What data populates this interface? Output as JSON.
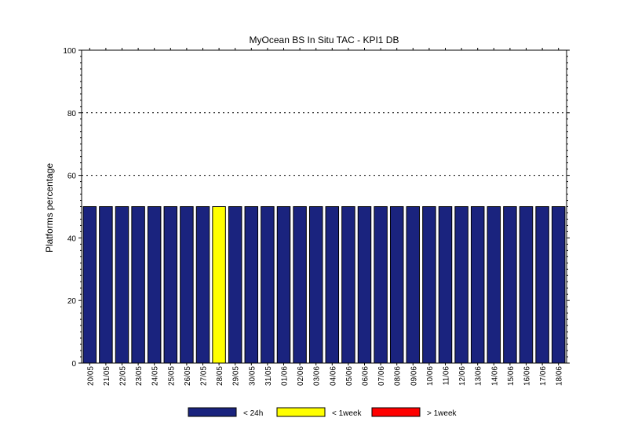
{
  "chart_data": {
    "type": "bar",
    "title": "MyOcean  BS In Situ TAC - KPI1  DB",
    "ylabel": "Platforms percentage",
    "xlabel": "",
    "ylim": [
      0,
      100
    ],
    "yticks": [
      0,
      20,
      40,
      60,
      80,
      100
    ],
    "grid": "horizontal dotted at 60, 80, 100",
    "legend_position": "bottom",
    "categories": [
      "20/05",
      "21/05",
      "22/05",
      "23/05",
      "24/05",
      "25/05",
      "26/05",
      "27/05",
      "28/05",
      "29/05",
      "30/05",
      "31/05",
      "01/06",
      "02/06",
      "03/06",
      "04/06",
      "05/06",
      "06/06",
      "07/06",
      "08/06",
      "09/06",
      "10/06",
      "11/06",
      "12/06",
      "13/06",
      "14/06",
      "15/06",
      "16/06",
      "17/06",
      "18/06"
    ],
    "series": [
      {
        "name": "< 24h",
        "color": "#1a237e",
        "values": [
          50,
          50,
          50,
          50,
          50,
          50,
          50,
          50,
          0,
          50,
          50,
          50,
          50,
          50,
          50,
          50,
          50,
          50,
          50,
          50,
          50,
          50,
          50,
          50,
          50,
          50,
          50,
          50,
          50,
          50
        ]
      },
      {
        "name": "< 1week",
        "color": "#ffff00",
        "values": [
          0,
          0,
          0,
          0,
          0,
          0,
          0,
          0,
          50,
          0,
          0,
          0,
          0,
          0,
          0,
          0,
          0,
          0,
          0,
          0,
          0,
          0,
          0,
          0,
          0,
          0,
          0,
          0,
          0,
          0
        ]
      },
      {
        "name": "> 1week",
        "color": "#ff0000",
        "values": [
          0,
          0,
          0,
          0,
          0,
          0,
          0,
          0,
          0,
          0,
          0,
          0,
          0,
          0,
          0,
          0,
          0,
          0,
          0,
          0,
          0,
          0,
          0,
          0,
          0,
          0,
          0,
          0,
          0,
          0
        ]
      }
    ]
  }
}
